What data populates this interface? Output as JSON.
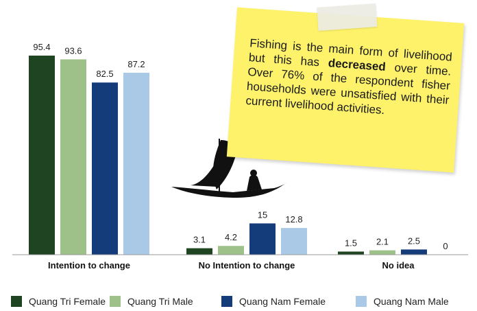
{
  "chart_data": {
    "type": "bar",
    "categories": [
      "Intention to change",
      "No Intention to change",
      "No idea"
    ],
    "series": [
      {
        "name": "Quang Tri Female",
        "values": [
          95.4,
          3.1,
          1.5
        ],
        "color": "#1e4421"
      },
      {
        "name": "Quang Tri Male",
        "values": [
          93.6,
          4.2,
          2.1
        ],
        "color": "#9dc188"
      },
      {
        "name": "Quang Nam Female",
        "values": [
          82.5,
          15,
          2.5
        ],
        "color": "#153c7a"
      },
      {
        "name": "Quang Nam Male",
        "values": [
          87.2,
          12.8,
          0
        ],
        "color": "#a9c9e6"
      }
    ],
    "value_labels": [
      [
        "95.4",
        "3.1",
        "1.5"
      ],
      [
        "93.6",
        "4.2",
        "2.1"
      ],
      [
        "82.5",
        "15",
        "2.5"
      ],
      [
        "87.2",
        "12.8",
        "0"
      ]
    ],
    "ylim": [
      0,
      100
    ],
    "grid": false,
    "legend_position": "bottom",
    "title": "",
    "xlabel": "",
    "ylabel": ""
  },
  "note": {
    "text_before": "Fishing is the main form of livelihood but this has ",
    "emphasis": "decreased",
    "text_after": " over time. Over 76% of the respondent fisher households were unsatisfied with their current livelihood activities.",
    "color": "#fdf26a"
  },
  "illustration": {
    "icon": "fishing-boat-silhouette-icon"
  }
}
